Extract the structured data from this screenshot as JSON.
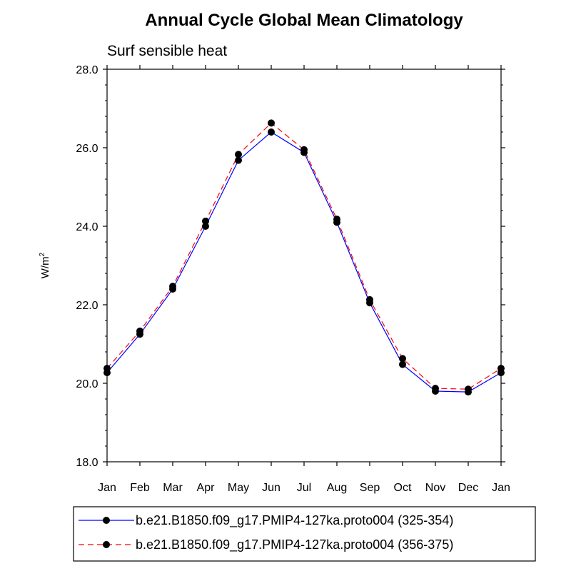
{
  "chart_data": {
    "type": "line",
    "title": "Annual Cycle Global Mean Climatology",
    "subtitle": "Surf sensible heat",
    "ylabel": "W/m",
    "ylabel_sup": "2",
    "xlabel": "",
    "ylim": [
      18.0,
      28.0
    ],
    "yticks": [
      "18.0",
      "20.0",
      "22.0",
      "24.0",
      "26.0",
      "28.0"
    ],
    "categories": [
      "Jan",
      "Feb",
      "Mar",
      "Apr",
      "May",
      "Jun",
      "Jul",
      "Aug",
      "Sep",
      "Oct",
      "Nov",
      "Dec",
      "Jan"
    ],
    "series": [
      {
        "name": "b.e21.B1850.f09_g17.PMIP4-127ka.proto004 (325-354)",
        "color": "#0000ff",
        "dash": "solid",
        "values": [
          20.27,
          21.25,
          22.4,
          24.0,
          25.68,
          26.4,
          25.88,
          24.1,
          22.05,
          20.48,
          19.8,
          19.78,
          20.27
        ]
      },
      {
        "name": "b.e21.B1850.f09_g17.PMIP4-127ka.proto004 (356-375)",
        "color": "#ff0000",
        "dash": "dashed",
        "values": [
          20.38,
          21.33,
          22.47,
          24.13,
          25.83,
          26.63,
          25.95,
          24.18,
          22.13,
          20.63,
          19.87,
          19.85,
          20.38
        ]
      }
    ],
    "legend": "bottom"
  }
}
